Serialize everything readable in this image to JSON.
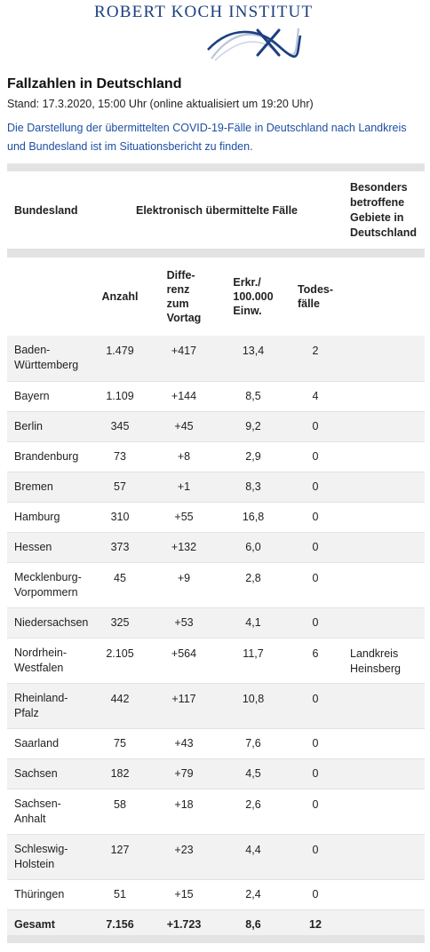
{
  "header": {
    "org_name": "ROBERT KOCH INSTITUT",
    "logo_icon": "rki-logo-icon",
    "brand_color": "#1c3f80"
  },
  "page": {
    "title": "Fallzahlen in Deutschland",
    "stand": "Stand: 17.3.2020, 15:00 Uhr (online aktualisiert um 19:20 Uhr)",
    "intro": "Die Darstellung der übermittelten COVID-19-Fälle in Deutschland nach Landkreis und Bundesland ist im Situationsbericht zu finden.",
    "link_color": "#1d4fa3"
  },
  "table": {
    "header_main": {
      "bundesland": "Bundesland",
      "electronic": "Elektronisch übermittelte Fälle",
      "areas": "Besonders betroffene Gebiete in Deutschland"
    },
    "header_sub": {
      "anzahl": "Anzahl",
      "differenz": "Diffe-renz zum Vortag",
      "rate": "Erkr./ 100.000 Einw.",
      "todesfaelle": "Todes-fälle"
    },
    "rows": [
      {
        "land": "Baden-Württemberg",
        "anzahl": "1.479",
        "differenz": "+417",
        "rate": "13,4",
        "todesfaelle": "2",
        "gebiet": ""
      },
      {
        "land": "Bayern",
        "anzahl": "1.109",
        "differenz": "+144",
        "rate": "8,5",
        "todesfaelle": "4",
        "gebiet": ""
      },
      {
        "land": "Berlin",
        "anzahl": "345",
        "differenz": "+45",
        "rate": "9,2",
        "todesfaelle": "0",
        "gebiet": ""
      },
      {
        "land": "Brandenburg",
        "anzahl": "73",
        "differenz": "+8",
        "rate": "2,9",
        "todesfaelle": "0",
        "gebiet": ""
      },
      {
        "land": "Bremen",
        "anzahl": "57",
        "differenz": "+1",
        "rate": "8,3",
        "todesfaelle": "0",
        "gebiet": ""
      },
      {
        "land": "Hamburg",
        "anzahl": "310",
        "differenz": "+55",
        "rate": "16,8",
        "todesfaelle": "0",
        "gebiet": ""
      },
      {
        "land": "Hessen",
        "anzahl": "373",
        "differenz": "+132",
        "rate": "6,0",
        "todesfaelle": "0",
        "gebiet": ""
      },
      {
        "land": "Mecklenburg-Vorpommern",
        "anzahl": "45",
        "differenz": "+9",
        "rate": "2,8",
        "todesfaelle": "0",
        "gebiet": ""
      },
      {
        "land": "Niedersachsen",
        "anzahl": "325",
        "differenz": "+53",
        "rate": "4,1",
        "todesfaelle": "0",
        "gebiet": ""
      },
      {
        "land": "Nordrhein-Westfalen",
        "anzahl": "2.105",
        "differenz": "+564",
        "rate": "11,7",
        "todesfaelle": "6",
        "gebiet": "Landkreis Heinsberg"
      },
      {
        "land": "Rheinland-Pfalz",
        "anzahl": "442",
        "differenz": "+117",
        "rate": "10,8",
        "todesfaelle": "0",
        "gebiet": ""
      },
      {
        "land": "Saarland",
        "anzahl": "75",
        "differenz": "+43",
        "rate": "7,6",
        "todesfaelle": "0",
        "gebiet": ""
      },
      {
        "land": "Sachsen",
        "anzahl": "182",
        "differenz": "+79",
        "rate": "4,5",
        "todesfaelle": "0",
        "gebiet": ""
      },
      {
        "land": "Sachsen-Anhalt",
        "anzahl": "58",
        "differenz": "+18",
        "rate": "2,6",
        "todesfaelle": "0",
        "gebiet": ""
      },
      {
        "land": "Schleswig-Holstein",
        "anzahl": "127",
        "differenz": "+23",
        "rate": "4,4",
        "todesfaelle": "0",
        "gebiet": ""
      },
      {
        "land": "Thüringen",
        "anzahl": "51",
        "differenz": "+15",
        "rate": "2,4",
        "todesfaelle": "0",
        "gebiet": ""
      }
    ],
    "total": {
      "land": "Gesamt",
      "anzahl": "7.156",
      "differenz": "+1.723",
      "rate": "8,6",
      "todesfaelle": "12"
    }
  }
}
